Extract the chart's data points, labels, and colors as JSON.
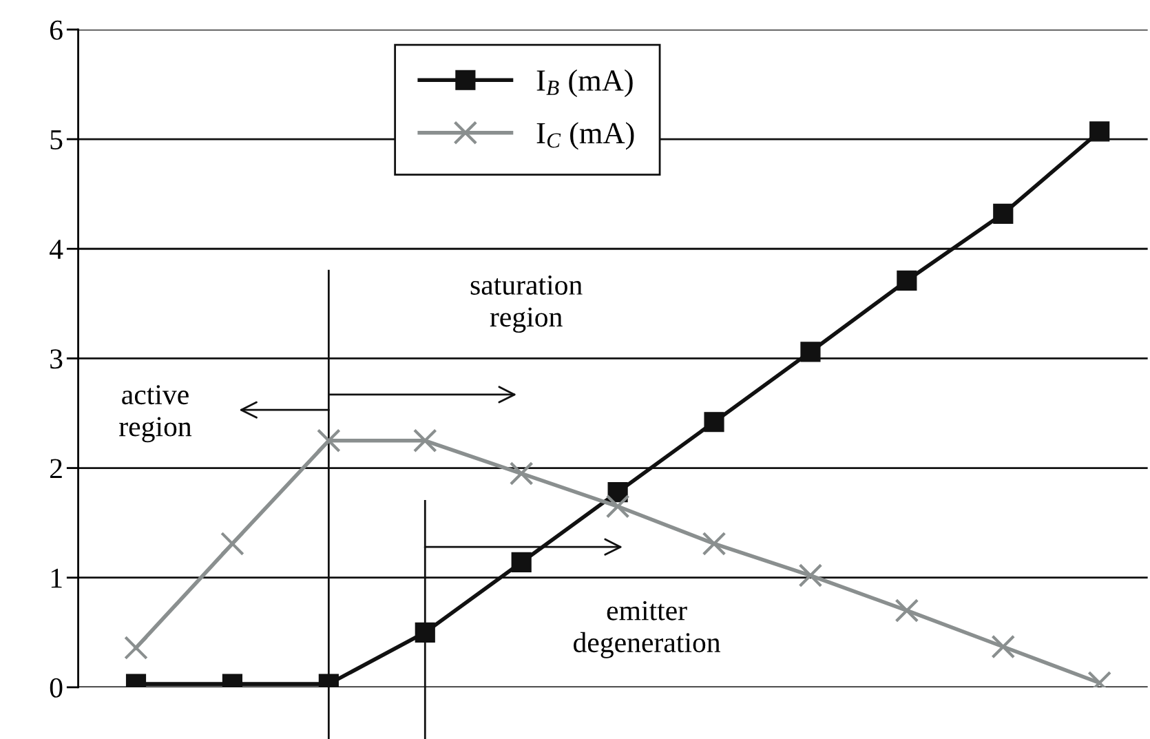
{
  "chart_data": {
    "type": "line",
    "categories": [
      null,
      null,
      null,
      null,
      null,
      null,
      null,
      null,
      null,
      null,
      null
    ],
    "ylim": [
      0,
      6
    ],
    "yticks": [
      0,
      1,
      2,
      3,
      4,
      5,
      6
    ],
    "tick_labels": "y",
    "grid": "y",
    "legend": "top",
    "series": [
      {
        "name": "I$_{B}$ (mA)",
        "color": "#111111",
        "marker": "square",
        "values": [
          0.03,
          0.03,
          0.03,
          0.5,
          1.14,
          1.78,
          2.42,
          3.06,
          3.71,
          4.32,
          5.07
        ]
      },
      {
        "name": "I$_{C}$ (mA)",
        "color": "#8a8f8f",
        "marker": "cross",
        "values": [
          0.36,
          1.31,
          2.25,
          2.25,
          1.95,
          1.65,
          1.31,
          1.02,
          0.7,
          0.37,
          0.04
        ]
      }
    ],
    "annotations": [
      "saturation\nregion",
      "active\nregion",
      "emitter\ndegeneration"
    ]
  }
}
